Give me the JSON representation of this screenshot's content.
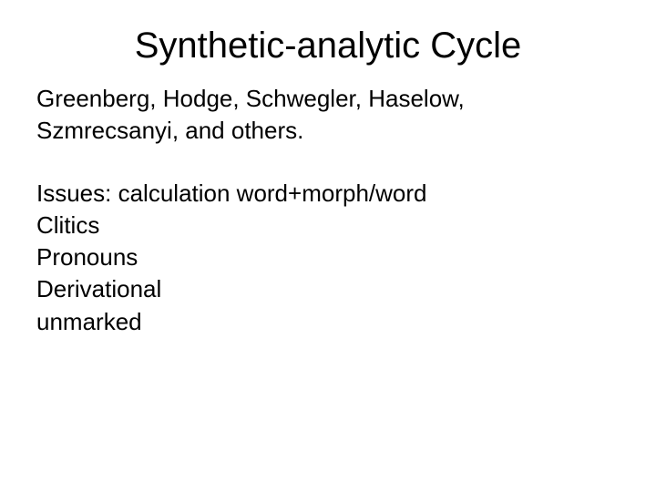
{
  "slide": {
    "title": "Synthetic-analytic Cycle",
    "authors_line1": "Greenberg, Hodge, Schwegler, Haselow,",
    "authors_line2": "Szmrecsanyi, and others.",
    "issues_line": "Issues: calculation word+morph/word",
    "item1": "Clitics",
    "item2": "Pronouns",
    "item3": "Derivational",
    "item4": "unmarked"
  },
  "style": {
    "background_color": "#ffffff",
    "text_color": "#000000",
    "title_fontsize": 40,
    "body_fontsize": 26,
    "font_family": "Arial"
  }
}
